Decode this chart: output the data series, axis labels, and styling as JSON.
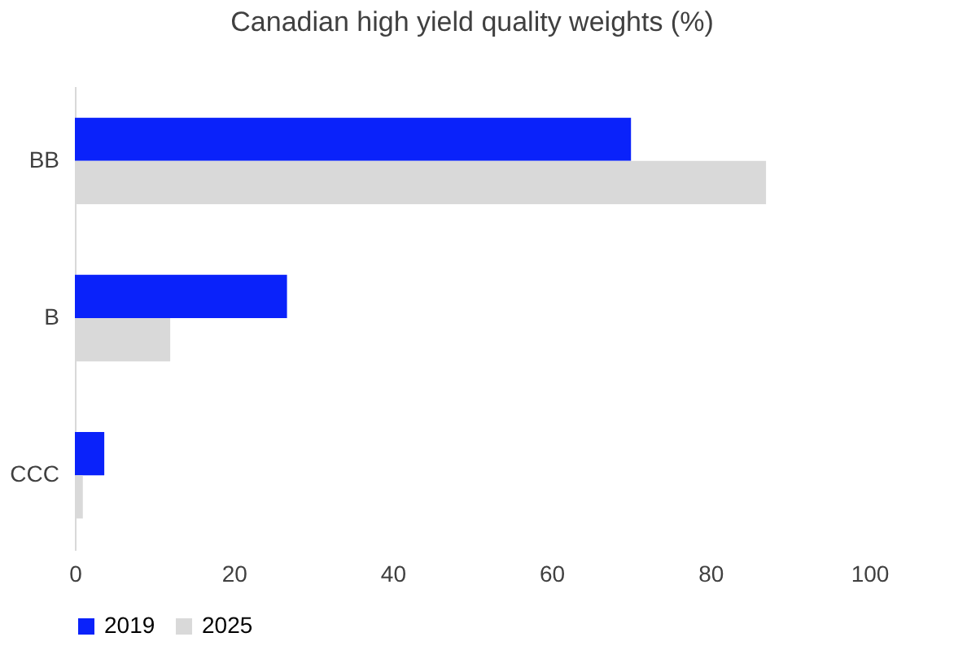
{
  "chart_data": {
    "type": "bar",
    "title": "Canadian high yield quality weights (%)",
    "orientation": "horizontal",
    "categories": [
      "BB",
      "B",
      "CCC"
    ],
    "series": [
      {
        "name": "2019",
        "color": "#0a22fa",
        "values": [
          70,
          26.7,
          3.7
        ]
      },
      {
        "name": "2025",
        "color": "#d9d9d9",
        "values": [
          87,
          12,
          1
        ]
      }
    ],
    "xlim": [
      0,
      100
    ],
    "xticks": [
      0,
      20,
      40,
      60,
      80,
      100
    ],
    "grid": false,
    "legend": "bottom"
  }
}
